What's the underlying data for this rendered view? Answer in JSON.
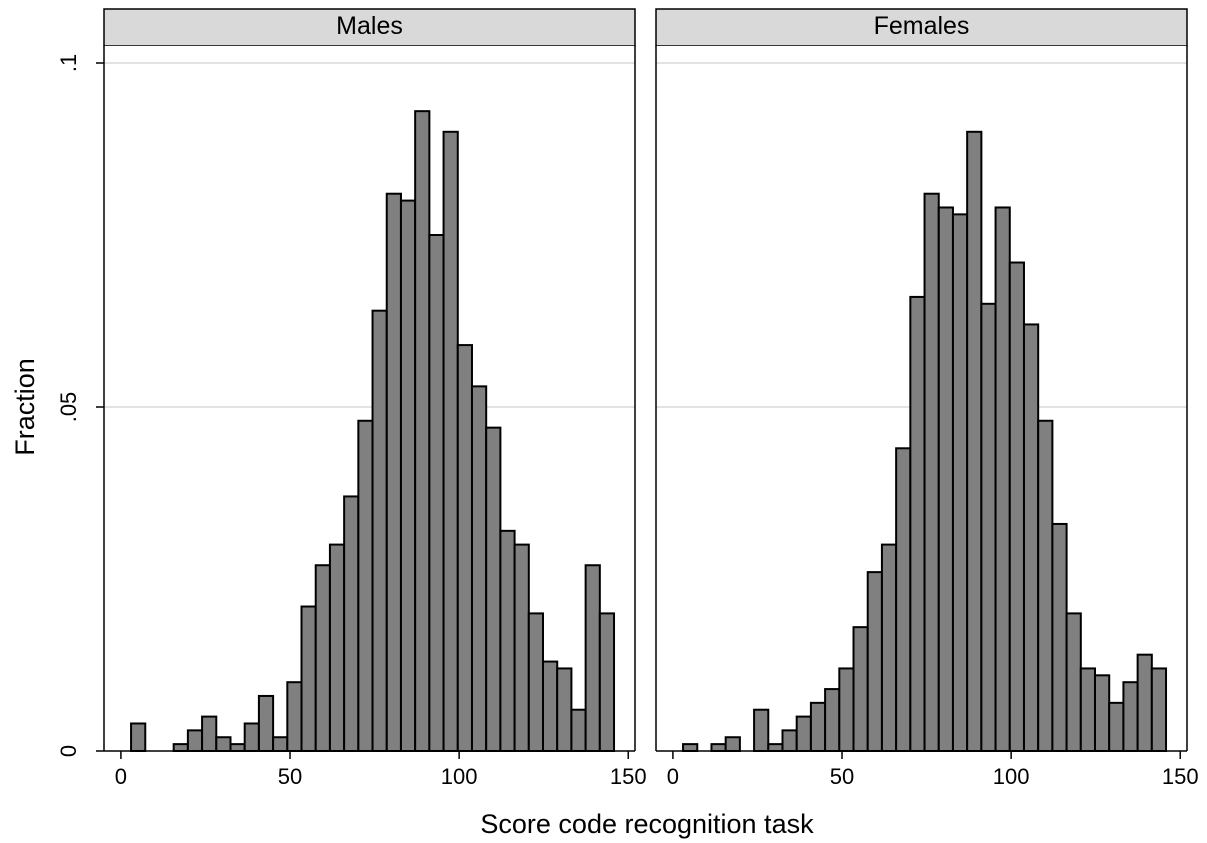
{
  "chart_data": {
    "type": "bar",
    "ytitle": "Fraction",
    "xtitle": "Score code recognition task",
    "ylim": [
      0,
      0.1
    ],
    "yticks": [
      {
        "value": 0,
        "label": "0"
      },
      {
        "value": 0.05,
        "label": ".05"
      },
      {
        "value": 0.1,
        "label": ".1"
      }
    ],
    "xlim": [
      -5,
      152
    ],
    "xticks": [
      {
        "value": 0,
        "label": "0"
      },
      {
        "value": 50,
        "label": "50"
      },
      {
        "value": 100,
        "label": "100"
      },
      {
        "value": 150,
        "label": "150"
      }
    ],
    "grid": true,
    "bin_width": 4.2,
    "bin_start": 3.0,
    "colors": {
      "bar_fill": "#808080",
      "bar_stroke": "#000000",
      "strip": "#d9d9d9",
      "grid": "#d9d9d9"
    },
    "panels": [
      {
        "title": "Males",
        "values": [
          0.004,
          0.0,
          0.0,
          0.001,
          0.003,
          0.005,
          0.002,
          0.001,
          0.004,
          0.008,
          0.002,
          0.01,
          0.021,
          0.027,
          0.03,
          0.037,
          0.048,
          0.064,
          0.081,
          0.08,
          0.093,
          0.075,
          0.09,
          0.059,
          0.053,
          0.047,
          0.032,
          0.03,
          0.02,
          0.013,
          0.012,
          0.006,
          0.027,
          0.02
        ]
      },
      {
        "title": "Females",
        "values": [
          0.001,
          0.0,
          0.001,
          0.002,
          0.0,
          0.006,
          0.001,
          0.003,
          0.005,
          0.007,
          0.009,
          0.012,
          0.018,
          0.026,
          0.03,
          0.044,
          0.066,
          0.081,
          0.079,
          0.078,
          0.09,
          0.065,
          0.079,
          0.071,
          0.062,
          0.048,
          0.033,
          0.02,
          0.012,
          0.011,
          0.007,
          0.01,
          0.014,
          0.012
        ]
      }
    ]
  }
}
